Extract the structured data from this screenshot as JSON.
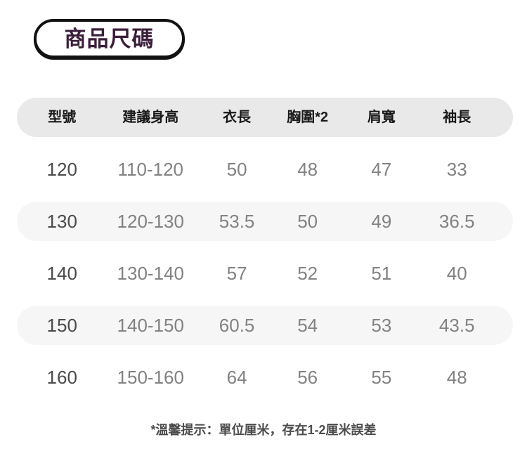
{
  "badge": {
    "label": "商品尺碼"
  },
  "table": {
    "headers": [
      "型號",
      "建議身高",
      "衣長",
      "胸圍*2",
      "肩寬",
      "袖長"
    ],
    "rows": [
      [
        "120",
        "110-120",
        "50",
        "48",
        "47",
        "33"
      ],
      [
        "130",
        "120-130",
        "53.5",
        "50",
        "49",
        "36.5"
      ],
      [
        "140",
        "130-140",
        "57",
        "52",
        "51",
        "40"
      ],
      [
        "150",
        "140-150",
        "60.5",
        "54",
        "53",
        "43.5"
      ],
      [
        "160",
        "150-160",
        "64",
        "56",
        "55",
        "48"
      ]
    ]
  },
  "footer": {
    "note": "*溫馨提示：單位厘米，存在1-2厘米誤差"
  },
  "colors": {
    "title_text": "#3b1e3a",
    "badge_border": "#121212",
    "header_bg": "#e9e9e9",
    "row_alt_bg": "#f6f6f6",
    "header_text": "#191919",
    "model_text": "#4a4a4a",
    "value_text": "#828282",
    "note_text": "#4c4c4c"
  }
}
